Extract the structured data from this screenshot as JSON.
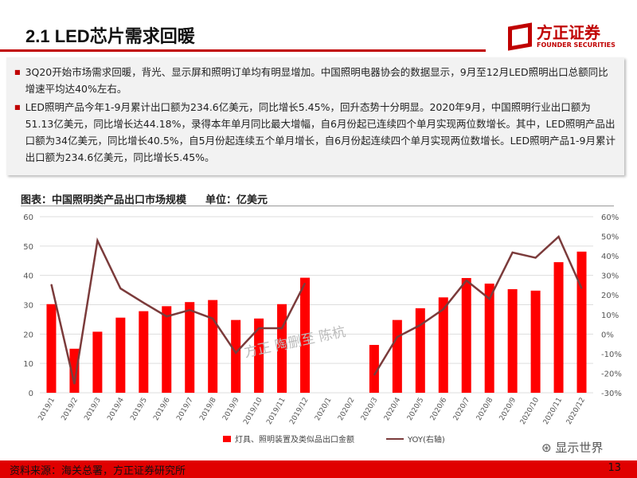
{
  "header": {
    "title": "2.1 LED芯片需求回暖",
    "logo_cn": "方正证券",
    "logo_en": "FOUNDER SECURITIES"
  },
  "bullets": [
    "3Q20开始市场需求回暖，背光、显示屏和照明订单均有明显增加。中国照明电器协会的数据显示，9月至12月LED照明出口总额同比增速平均达40%左右。",
    "LED照明产品今年1-9月累计出口额为234.6亿美元，同比增长5.45%，回升态势十分明显。2020年9月，中国照明行业出口额为51.13亿美元，同比增长达44.18%，录得本年单月同比最大增幅，自6月份起已连续四个单月实现两位数增长。其中，LED照明产品出口额为34亿美元，同比增长40.5%，自5月份起连续五个单月增长，自6月份起连续四个单月实现两位数增长。LED照明产品1-9月累计出口额为234.6亿美元，同比增长5.45%。"
  ],
  "chart_title": "图表：中国照明类产品出口市场规模",
  "chart_unit": "单位：亿美元",
  "watermark": "方正 陶删至 陈杭",
  "wechat": "显示世界",
  "footer": {
    "source": "资料来源：海关总署，方正证券研究所",
    "page": "13"
  },
  "chart_data": {
    "type": "bar+line",
    "categories": [
      "2019/1",
      "2019/2",
      "2019/3",
      "2019/4",
      "2019/5",
      "2019/6",
      "2019/7",
      "2019/8",
      "2019/9",
      "2019/10",
      "2019/11",
      "2019/12",
      "2020/1",
      "2020/2",
      "2020/3",
      "2020/4",
      "2020/5",
      "2020/6",
      "2020/7",
      "2020/8",
      "2020/9",
      "2020/10",
      "2020/11",
      "2020/12"
    ],
    "series": [
      {
        "name": "灯具、照明装置及类似品出口金额",
        "type": "bar",
        "axis": "left",
        "color": "#ff0000",
        "values": [
          30.2,
          15,
          20.8,
          25.6,
          27.8,
          29.5,
          30.9,
          31.6,
          24.8,
          25.3,
          30.2,
          39.2,
          null,
          null,
          16.3,
          24.8,
          28.8,
          32.5,
          39.1,
          37.2,
          35.3,
          34.8,
          44.5,
          48.1
        ]
      },
      {
        "name": "YOY(右轴)",
        "type": "line",
        "axis": "right",
        "color": "#7b3b3b",
        "values": [
          25.4,
          -25.5,
          47.8,
          23.3,
          16,
          9,
          12.3,
          7.9,
          -9.6,
          3,
          3,
          26,
          null,
          null,
          -21,
          -1.5,
          4.6,
          12.7,
          27.4,
          18,
          41.7,
          39,
          49.8,
          23.3
        ]
      }
    ],
    "left_axis": {
      "min": 0,
      "max": 60,
      "ticks": [
        "0",
        "10",
        "20",
        "30",
        "40",
        "50",
        "60"
      ]
    },
    "right_axis": {
      "min": -30,
      "max": 60,
      "ticks": [
        "-30%",
        "-20%",
        "-10%",
        "0%",
        "10%",
        "20%",
        "30%",
        "40%",
        "50%",
        "60%"
      ]
    },
    "grid": true,
    "legend": "bottom"
  }
}
